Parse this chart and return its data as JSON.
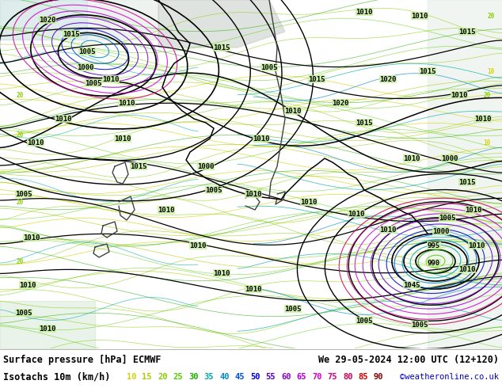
{
  "title_line1": "Surface pressure [hPa] ECMWF",
  "title_line1_right": "We 29-05-2024 12:00 UTC (12+120)",
  "title_line2_left": "Isotachs 10m (km/h)",
  "title_line2_right": "©weatheronline.co.uk",
  "legend_values": [
    "10",
    "15",
    "20",
    "25",
    "30",
    "35",
    "40",
    "45",
    "50",
    "55",
    "60",
    "65",
    "70",
    "75",
    "80",
    "85",
    "90"
  ],
  "legend_colors": [
    "#d4d400",
    "#aacc00",
    "#88cc00",
    "#55cc00",
    "#22aa00",
    "#00aaaa",
    "#0088cc",
    "#0055cc",
    "#0000cc",
    "#5500cc",
    "#8800cc",
    "#aa00cc",
    "#cc00cc",
    "#cc0088",
    "#cc0055",
    "#cc0000",
    "#880000"
  ],
  "map_bg_color": "#c8f0a0",
  "sea_color": "#d8eef8",
  "fig_width": 6.34,
  "fig_height": 4.9,
  "dpi": 100,
  "bottom_bg": "#ffffff",
  "text_color": "#000000",
  "copyright_color": "#0000cc",
  "line1_fontsize": 8.5,
  "line2_fontsize": 8.5,
  "legend_fontsize": 7.5
}
